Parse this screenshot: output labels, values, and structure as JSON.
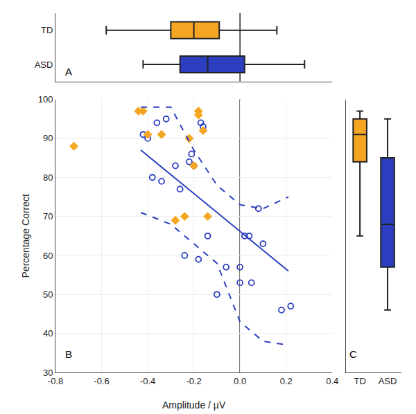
{
  "chart_data": [
    {
      "type": "box",
      "orientation": "horizontal",
      "categories": [
        "TD",
        "ASD"
      ],
      "colors": [
        "#F5A623",
        "#2B3EBF"
      ],
      "whisker_low": [
        -0.58,
        -0.42
      ],
      "q1": [
        -0.3,
        -0.26
      ],
      "median": [
        -0.2,
        -0.14
      ],
      "q3": [
        -0.09,
        0.02
      ],
      "whisker_high": [
        0.16,
        0.28
      ],
      "xlim": [
        -0.8,
        0.4
      ],
      "vline": 0,
      "tick_labels": "y",
      "annotations": [
        "A"
      ]
    },
    {
      "type": "scatter",
      "x_label": "Amplitude / µV",
      "y_label": "Percentage Correct",
      "xlim": [
        -0.8,
        0.4
      ],
      "ylim": [
        30,
        100
      ],
      "xticks": [
        -0.8,
        -0.6,
        -0.4,
        -0.2,
        {
          "value": 0,
          "label": "0.0"
        },
        0.2,
        0.4
      ],
      "yticks": [
        30,
        40,
        50,
        60,
        70,
        80,
        90,
        100
      ],
      "vline": 0,
      "annotations": [
        "B"
      ],
      "series": [
        {
          "type": "scatter",
          "color": "#2B3EBF",
          "marker": "circle-open",
          "x": [
            -0.42,
            -0.4,
            -0.38,
            -0.36,
            -0.34,
            -0.32,
            -0.28,
            -0.26,
            -0.24,
            -0.22,
            -0.21,
            -0.2,
            -0.18,
            -0.17,
            -0.16,
            -0.14,
            -0.1,
            -0.06,
            0.0,
            0.0,
            0.02,
            0.04,
            0.05,
            0.08,
            0.1,
            0.18,
            0.22
          ],
          "values": [
            91,
            90,
            80,
            94,
            79,
            95,
            83,
            77,
            60,
            84,
            86,
            83,
            59,
            94,
            93,
            65,
            50,
            57,
            57,
            53,
            65,
            65,
            53,
            72,
            63,
            46,
            47
          ]
        },
        {
          "type": "scatter",
          "color": "#F5A623",
          "marker": "diamond",
          "x": [
            -0.72,
            -0.44,
            -0.42,
            -0.4,
            -0.34,
            -0.28,
            -0.24,
            -0.22,
            -0.2,
            -0.18,
            -0.18,
            -0.16,
            -0.14
          ],
          "values": [
            88,
            97,
            97,
            91,
            91,
            69,
            70,
            90,
            83,
            96,
            97,
            92,
            70
          ]
        },
        {
          "type": "line",
          "color": "#2B3EBF",
          "line_style": "solid",
          "x": [
            -0.43,
            0.21
          ],
          "values": [
            87.0,
            56.0
          ]
        },
        {
          "type": "line",
          "color": "#2B3EBF",
          "line_style": "dash",
          "x": [
            -0.43,
            -0.3,
            -0.2,
            -0.1,
            0.0,
            0.1,
            0.21
          ],
          "values": [
            98,
            98,
            87,
            78,
            73,
            72,
            75
          ]
        },
        {
          "type": "line",
          "color": "#2B3EBF",
          "line_style": "dash",
          "x": [
            -0.43,
            -0.3,
            -0.2,
            -0.1,
            0.0,
            0.1,
            0.21
          ],
          "values": [
            71,
            68,
            63,
            58,
            43,
            38,
            37
          ]
        }
      ]
    },
    {
      "type": "box",
      "categories": [
        "TD",
        "ASD"
      ],
      "colors": [
        "#F5A623",
        "#2B3EBF"
      ],
      "whisker_low": [
        65,
        46
      ],
      "q1": [
        84,
        57
      ],
      "median": [
        91,
        68
      ],
      "q3": [
        95,
        85
      ],
      "whisker_high": [
        97,
        95
      ],
      "ylim": [
        30,
        100
      ],
      "tick_labels": "x",
      "annotations": [
        "C"
      ]
    }
  ]
}
